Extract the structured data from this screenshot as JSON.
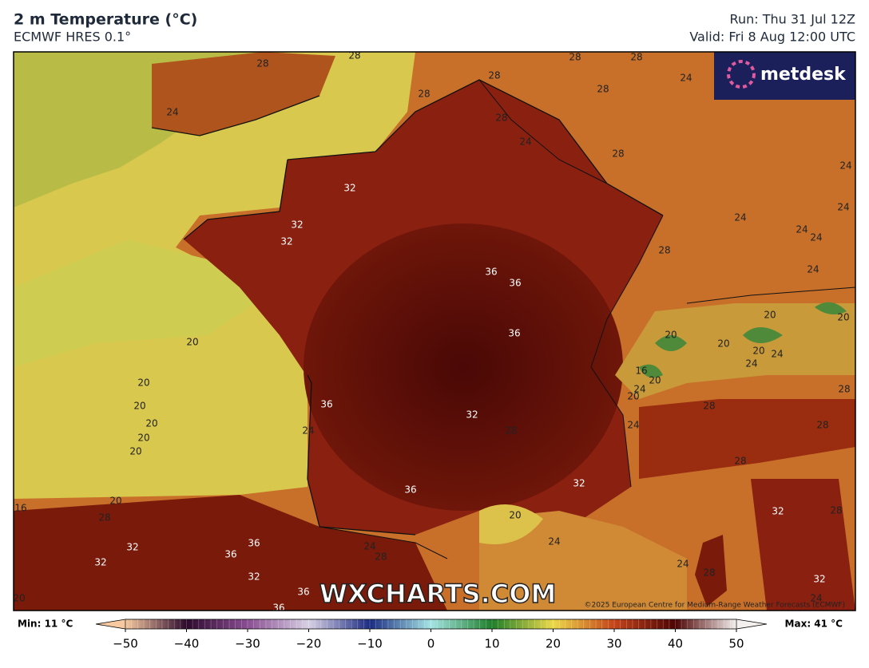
{
  "header": {
    "title": "2 m Temperature (°C)",
    "model": "ECMWF HRES 0.1°",
    "run": "Run: Thu 31 Jul 12Z",
    "valid": "Valid: Fri 8 Aug 12:00 UTC"
  },
  "logo": "metdesk",
  "watermark": "WXCHARTS.COM",
  "copyright": "©2025 European Centre for Medium-Range Weather Forecasts (ECMWF)",
  "contour_labels": [
    28,
    28,
    24,
    28,
    28,
    28,
    24,
    28,
    28,
    28,
    24,
    28,
    24,
    32,
    32,
    32,
    24,
    24,
    24,
    24,
    28,
    24,
    36,
    36,
    36,
    20,
    20,
    20,
    20,
    20,
    20,
    24,
    24,
    16,
    20,
    24,
    20,
    28,
    20,
    20,
    20,
    20,
    20,
    36,
    32,
    28,
    24,
    24,
    28,
    28,
    28,
    32,
    36,
    16,
    20,
    32,
    28,
    28,
    20,
    32,
    24,
    36,
    36,
    24,
    28,
    32,
    24,
    28,
    32,
    32,
    36,
    24,
    20,
    36
  ],
  "colorbar": {
    "min_label": "Min: 11 °C",
    "max_label": "Max: 41 °C",
    "ticks": [
      {
        "value": -50,
        "label": "−50"
      },
      {
        "value": -40,
        "label": "−40"
      },
      {
        "value": -30,
        "label": "−30"
      },
      {
        "value": -20,
        "label": "−20"
      },
      {
        "value": -10,
        "label": "−10"
      },
      0,
      10,
      20,
      30,
      40,
      50
    ],
    "colors": [
      "#f6c9a0",
      "#2e0a2e",
      "#8a4e92",
      "#d8d0e4",
      "#1c2c82",
      "#a4e4e4",
      "#1f7f2a",
      "#ecd848",
      "#c4441a",
      "#4e0404",
      "#f4f0ee"
    ]
  }
}
